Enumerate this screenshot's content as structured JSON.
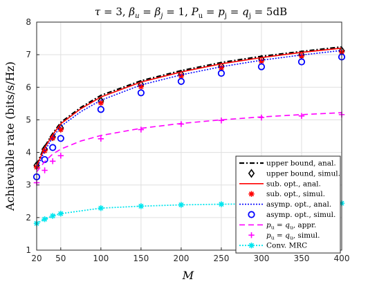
{
  "chart_data": {
    "type": "line",
    "title": "τ = 3, β_u = β_j = 1, P_u = p_j = q_j = 5dB",
    "xlabel": "M",
    "ylabel": "Achievable rate (bits/s/Hz)",
    "xlim": [
      20,
      400
    ],
    "ylim": [
      1,
      8
    ],
    "x_ticks": [
      20,
      50,
      100,
      150,
      200,
      250,
      300,
      350,
      400
    ],
    "y_ticks": [
      1,
      2,
      3,
      4,
      5,
      6,
      7,
      8
    ],
    "x_tick_labels": [
      "20",
      "50",
      "100",
      "150",
      "200",
      "250",
      "300",
      "350",
      "400"
    ],
    "y_tick_labels": [
      "1",
      "2",
      "3",
      "4",
      "5",
      "6",
      "7",
      "8"
    ],
    "grid": true,
    "legend_placement": "bottom-right",
    "x_line": [
      20,
      30,
      40,
      50,
      75,
      100,
      150,
      200,
      250,
      300,
      350,
      400
    ],
    "x_markers": [
      20,
      30,
      40,
      50,
      100,
      150,
      200,
      250,
      300,
      350,
      400
    ],
    "series": [
      {
        "name": "upper bound, anal.",
        "kind": "line",
        "color": "#000000",
        "dash": "7,3,2,3",
        "width": 2.2,
        "x": [
          20,
          30,
          40,
          50,
          75,
          100,
          150,
          200,
          250,
          300,
          350,
          400
        ],
        "values": [
          3.63,
          4.18,
          4.58,
          4.92,
          5.38,
          5.75,
          6.2,
          6.51,
          6.76,
          6.95,
          7.1,
          7.24
        ]
      },
      {
        "name": "upper bound, simul.",
        "kind": "marker",
        "marker": "diamond",
        "color": "#000000",
        "x": [
          20,
          30,
          40,
          50,
          100,
          150,
          200,
          250,
          300,
          350,
          400
        ],
        "values": [
          3.6,
          4.1,
          4.48,
          4.75,
          5.58,
          6.08,
          6.4,
          6.65,
          6.86,
          7.0,
          7.12
        ]
      },
      {
        "name": "sub. opt., anal.",
        "kind": "line",
        "color": "#ff0000",
        "dash": "",
        "width": 1.6,
        "x": [
          20,
          30,
          40,
          50,
          75,
          100,
          150,
          200,
          250,
          300,
          350,
          400
        ],
        "values": [
          3.58,
          4.14,
          4.54,
          4.88,
          5.34,
          5.7,
          6.16,
          6.47,
          6.72,
          6.91,
          7.07,
          7.2
        ]
      },
      {
        "name": "sub. opt., simul.",
        "kind": "marker",
        "marker": "asterisk",
        "color": "#ff0000",
        "x": [
          20,
          30,
          40,
          50,
          100,
          150,
          200,
          250,
          300,
          350,
          400
        ],
        "values": [
          3.55,
          4.05,
          4.44,
          4.7,
          5.52,
          6.02,
          6.35,
          6.6,
          6.8,
          6.96,
          7.08
        ]
      },
      {
        "name": "asymp. opt., anal.",
        "kind": "line",
        "color": "#0000ff",
        "dash": "2,2",
        "width": 1.6,
        "x": [
          20,
          30,
          40,
          50,
          75,
          100,
          150,
          200,
          250,
          300,
          350,
          400
        ],
        "values": [
          3.5,
          4.05,
          4.46,
          4.8,
          5.25,
          5.6,
          6.07,
          6.38,
          6.63,
          6.83,
          6.99,
          7.13
        ]
      },
      {
        "name": "asymp. opt., simul.",
        "kind": "marker",
        "marker": "circle",
        "color": "#0000ff",
        "x": [
          20,
          30,
          40,
          50,
          100,
          150,
          200,
          250,
          300,
          350,
          400
        ],
        "values": [
          3.25,
          3.78,
          4.15,
          4.43,
          5.32,
          5.83,
          6.18,
          6.43,
          6.63,
          6.78,
          6.93
        ]
      },
      {
        "name": "p_u = q_u, appr.",
        "kind": "line",
        "color": "#ff00ff",
        "dash": "8,5",
        "width": 1.6,
        "x": [
          20,
          30,
          40,
          50,
          75,
          100,
          150,
          200,
          250,
          300,
          350,
          400
        ],
        "values": [
          3.4,
          3.72,
          3.95,
          4.1,
          4.35,
          4.52,
          4.74,
          4.89,
          5.0,
          5.09,
          5.16,
          5.22
        ]
      },
      {
        "name": "p_u = q_u, simul.",
        "kind": "marker",
        "marker": "plus",
        "color": "#ff00ff",
        "x": [
          20,
          30,
          40,
          50,
          100,
          150,
          200,
          250,
          300,
          350,
          400
        ],
        "values": [
          3.07,
          3.45,
          3.73,
          3.9,
          4.42,
          4.7,
          4.87,
          4.98,
          5.07,
          5.12,
          5.16
        ]
      },
      {
        "name": "Conv. MRC",
        "kind": "both",
        "marker": "asterisk",
        "color": "#00e5ee",
        "dash": "2,2",
        "width": 1.8,
        "x": [
          20,
          30,
          40,
          50,
          100,
          150,
          200,
          250,
          300,
          350,
          400
        ],
        "values": [
          1.82,
          1.95,
          2.05,
          2.12,
          2.29,
          2.35,
          2.39,
          2.41,
          2.42,
          2.43,
          2.44
        ]
      }
    ]
  }
}
